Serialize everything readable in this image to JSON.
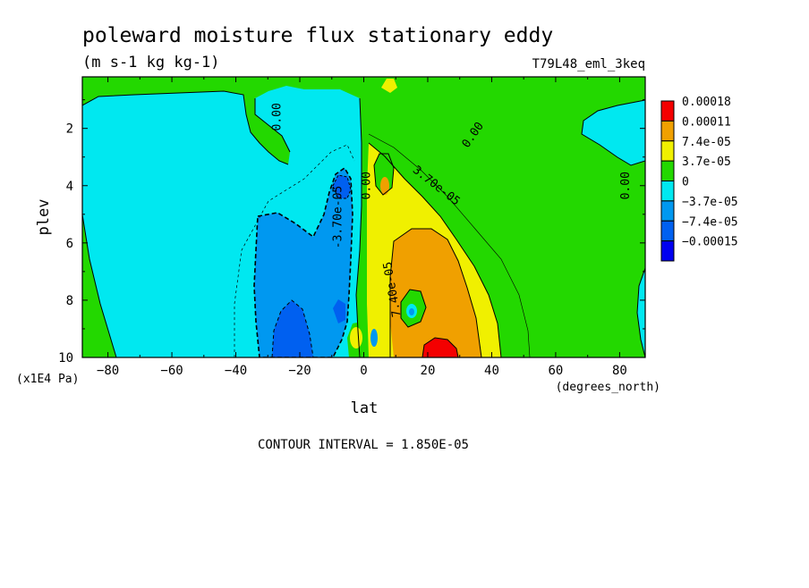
{
  "chart_data": {
    "type": "heatmap",
    "title": "poleward moisture flux stationary eddy",
    "subtitle": "(m s-1 kg kg-1)",
    "run_label": "T79L48_eml_3keq",
    "xlabel": "lat",
    "x_units": "(degrees_north)",
    "ylabel": "plev",
    "y_units": "(x1E4 Pa)",
    "x_range": [
      -88,
      88
    ],
    "y_range": [
      0.2,
      10
    ],
    "y_inverted": true,
    "x_ticks": [
      -80,
      -60,
      -40,
      -20,
      0,
      20,
      40,
      60,
      80
    ],
    "y_ticks": [
      2,
      4,
      6,
      8,
      10
    ],
    "grid": false,
    "legend_position": "right",
    "footer": "CONTOUR INTERVAL = 1.850E-05",
    "colorbar": [
      {
        "label": "0.00018",
        "color": "#f40000"
      },
      {
        "label": "0.00011",
        "color": "#f0a000"
      },
      {
        "label": "7.4e-05",
        "color": "#f0f000"
      },
      {
        "label": "3.7e-05",
        "color": "#23d800"
      },
      {
        "label": "0",
        "color": "#00e8f0"
      },
      {
        "label": "−3.7e-05",
        "color": "#0098f0"
      },
      {
        "label": "−7.4e-05",
        "color": "#0060f0"
      },
      {
        "label": "−0.00015",
        "color": "#0000f0"
      }
    ],
    "contour_labels": [
      {
        "text": "0.00",
        "lat": -26,
        "plev": 1.6,
        "angle": -90
      },
      {
        "text": "0.00",
        "lat": 35,
        "plev": 2.3,
        "angle": -55
      },
      {
        "text": "3.70e-05",
        "lat": 22,
        "plev": 4.1,
        "angle": 38
      },
      {
        "text": "0.00",
        "lat": 2,
        "plev": 4.0,
        "angle": -90
      },
      {
        "text": "-3.70e-05",
        "lat": -7,
        "plev": 5.1,
        "angle": -90
      },
      {
        "text": "0.00",
        "lat": 83,
        "plev": 4.0,
        "angle": -90
      },
      {
        "text": "7.40e-05",
        "lat": 10,
        "plev": 7.6,
        "angle": -100
      }
    ]
  }
}
